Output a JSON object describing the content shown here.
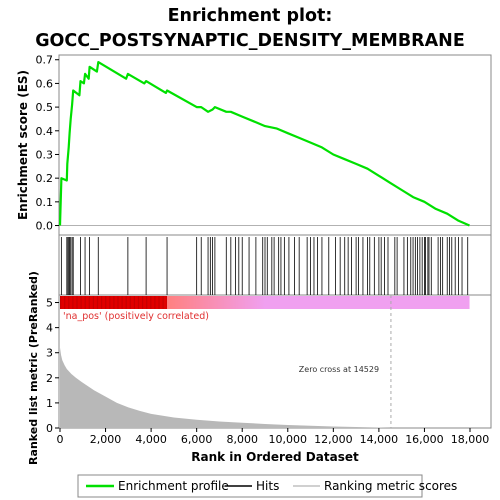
{
  "title_line1": "Enrichment plot:",
  "title_line2": "GOCC_POSTSYNAPTIC_DENSITY_MEMBRANE",
  "colors": {
    "es_line": "#00e000",
    "hits": "#000000",
    "metric_fill": "#b8b8b8",
    "pos_red": "#e00000",
    "neg_pink": "#f0a0f0",
    "pos_label": "#e03030",
    "zero_cross_line": "#aaaaaa"
  },
  "chart_data": {
    "type": "line",
    "xlabel": "Rank in Ordered Dataset",
    "x_ticks": [
      0,
      2000,
      4000,
      6000,
      8000,
      10000,
      12000,
      14000,
      16000,
      18000
    ],
    "x_tick_labels": [
      "0",
      "2,000",
      "4,000",
      "6,000",
      "8,000",
      "10,000",
      "12,000",
      "14,000",
      "16,000",
      "18,000"
    ],
    "xlim": [
      0,
      18800
    ],
    "n_genes": 17980,
    "es_panel": {
      "ylabel": "Enrichment score (ES)",
      "ylim": [
        -0.04,
        0.72
      ],
      "y_ticks": [
        0.0,
        0.1,
        0.2,
        0.3,
        0.4,
        0.5,
        0.6,
        0.7
      ],
      "y_tick_labels": [
        "0.0",
        "0.1",
        "0.2",
        "0.3",
        "0.4",
        "0.5",
        "0.6",
        "0.7"
      ],
      "series_name": "Enrichment profile",
      "points": [
        [
          0,
          0
        ],
        [
          60,
          0.2
        ],
        [
          300,
          0.19
        ],
        [
          320,
          0.26
        ],
        [
          380,
          0.33
        ],
        [
          420,
          0.39
        ],
        [
          470,
          0.45
        ],
        [
          530,
          0.51
        ],
        [
          580,
          0.57
        ],
        [
          850,
          0.55
        ],
        [
          900,
          0.61
        ],
        [
          1050,
          0.6
        ],
        [
          1100,
          0.64
        ],
        [
          1260,
          0.62
        ],
        [
          1300,
          0.67
        ],
        [
          1620,
          0.65
        ],
        [
          1680,
          0.69
        ],
        [
          2900,
          0.62
        ],
        [
          2980,
          0.64
        ],
        [
          3700,
          0.6
        ],
        [
          3780,
          0.61
        ],
        [
          4650,
          0.56
        ],
        [
          4700,
          0.57
        ],
        [
          6000,
          0.5
        ],
        [
          6200,
          0.5
        ],
        [
          6500,
          0.48
        ],
        [
          6700,
          0.49
        ],
        [
          6800,
          0.5
        ],
        [
          7300,
          0.48
        ],
        [
          7500,
          0.48
        ],
        [
          8000,
          0.46
        ],
        [
          8500,
          0.44
        ],
        [
          9000,
          0.42
        ],
        [
          9500,
          0.41
        ],
        [
          10000,
          0.39
        ],
        [
          10500,
          0.37
        ],
        [
          11000,
          0.35
        ],
        [
          11500,
          0.33
        ],
        [
          12000,
          0.3
        ],
        [
          12500,
          0.28
        ],
        [
          13000,
          0.26
        ],
        [
          13500,
          0.24
        ],
        [
          14000,
          0.21
        ],
        [
          14500,
          0.18
        ],
        [
          15000,
          0.15
        ],
        [
          15500,
          0.12
        ],
        [
          16000,
          0.1
        ],
        [
          16500,
          0.07
        ],
        [
          17000,
          0.05
        ],
        [
          17500,
          0.02
        ],
        [
          17980,
          0
        ]
      ]
    },
    "hits": [
      60,
      300,
      320,
      380,
      420,
      470,
      530,
      580,
      900,
      1100,
      1300,
      1680,
      2980,
      3780,
      4700,
      6000,
      6200,
      6500,
      6600,
      6700,
      6800,
      7300,
      7500,
      7700,
      7850,
      8000,
      8300,
      8600,
      8900,
      9000,
      9100,
      9300,
      9400,
      9600,
      9700,
      9850,
      10050,
      10300,
      10500,
      10850,
      11000,
      11150,
      11300,
      11500,
      11800,
      12100,
      12300,
      12500,
      12650,
      12800,
      13000,
      13100,
      13300,
      13500,
      13600,
      13800,
      14000,
      14100,
      14250,
      14400,
      14700,
      14800,
      15100,
      15250,
      15400,
      15500,
      15600,
      15700,
      15800,
      15900,
      16000,
      16050,
      16150,
      16200,
      16300,
      16600,
      16700,
      16800,
      17000,
      17100,
      17200,
      17350,
      17500,
      17650,
      17900
    ],
    "ranked_metric_panel": {
      "ylabel": "Ranked list metric (PreRanked)",
      "ylim": [
        0,
        5.3
      ],
      "y_ticks": [
        0,
        1,
        2,
        3,
        4,
        5
      ],
      "y_tick_labels": [
        "0",
        "1",
        "2",
        "3",
        "4",
        "5"
      ],
      "series_name": "Ranking metric scores",
      "curve": [
        [
          0,
          3.2
        ],
        [
          50,
          2.9
        ],
        [
          100,
          2.7
        ],
        [
          200,
          2.5
        ],
        [
          300,
          2.35
        ],
        [
          500,
          2.15
        ],
        [
          700,
          2.0
        ],
        [
          1000,
          1.8
        ],
        [
          1500,
          1.5
        ],
        [
          2000,
          1.25
        ],
        [
          2500,
          1.0
        ],
        [
          3000,
          0.82
        ],
        [
          3500,
          0.68
        ],
        [
          4000,
          0.56
        ],
        [
          5000,
          0.42
        ],
        [
          6000,
          0.33
        ],
        [
          7000,
          0.26
        ],
        [
          8000,
          0.21
        ],
        [
          9000,
          0.16
        ],
        [
          10000,
          0.12
        ],
        [
          11000,
          0.09
        ],
        [
          12000,
          0.06
        ],
        [
          13000,
          0.04
        ],
        [
          14000,
          0.02
        ],
        [
          14529,
          0
        ],
        [
          18000,
          0
        ]
      ],
      "zero_cross_rank": 14529,
      "zero_cross_label": "Zero cross at 14529"
    },
    "color_bar": {
      "pos_end": 4700,
      "gradient_end": 9000,
      "pos_label": "'na_pos' (positively correlated)"
    },
    "legend": [
      {
        "name": "Enrichment profile",
        "color": "#00e000"
      },
      {
        "name": "Hits",
        "color": "#000000"
      },
      {
        "name": "Ranking metric scores",
        "color": "#c0c0c0"
      }
    ],
    "legend_position": "bottom"
  }
}
